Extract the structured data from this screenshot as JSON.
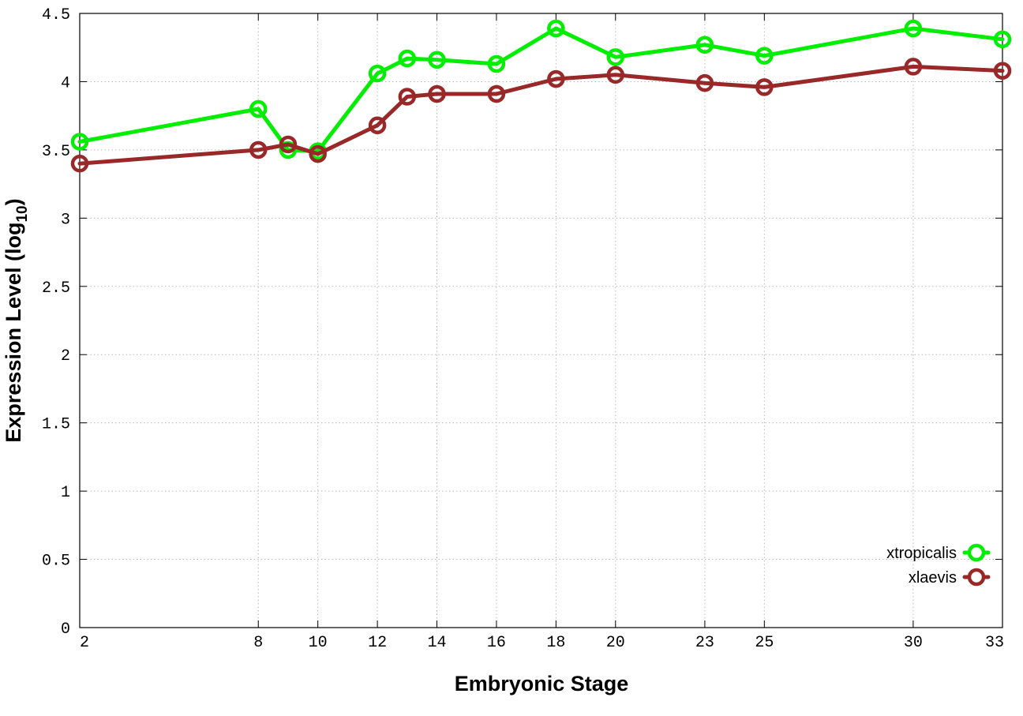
{
  "chart_data": {
    "type": "line",
    "title": "",
    "xlabel": "Embryonic Stage",
    "ylabel_main": "Expression Level (log",
    "ylabel_sub": "10",
    "ylabel_close": ")",
    "x": [
      2,
      8,
      9,
      10,
      12,
      13,
      14,
      16,
      18,
      20,
      23,
      25,
      30,
      33
    ],
    "x_ticks": [
      2,
      8,
      10,
      12,
      14,
      16,
      18,
      20,
      23,
      25,
      30,
      33
    ],
    "x_tick_labels": [
      "2",
      "8",
      "10",
      "12",
      "14",
      "16",
      "18",
      "20",
      "23",
      "25",
      "30",
      "33"
    ],
    "xlim": [
      2,
      33
    ],
    "y_ticks": [
      0,
      0.5,
      1,
      1.5,
      2,
      2.5,
      3,
      3.5,
      4,
      4.5
    ],
    "y_tick_labels": [
      "0",
      "0.5",
      "1",
      "1.5",
      "2",
      "2.5",
      "3",
      "3.5",
      "4",
      "4.5"
    ],
    "ylim": [
      0,
      4.5
    ],
    "grid": true,
    "legend_position": "bottom-right",
    "series": [
      {
        "name": "xtropicalis",
        "color": "#00ee00",
        "values": [
          3.56,
          3.8,
          3.5,
          3.49,
          4.06,
          4.17,
          4.16,
          4.13,
          4.39,
          4.18,
          4.27,
          4.19,
          4.39,
          4.31
        ]
      },
      {
        "name": "xlaevis",
        "color": "#992828",
        "values": [
          3.4,
          3.5,
          3.54,
          3.47,
          3.68,
          3.89,
          3.91,
          3.91,
          4.02,
          4.05,
          3.99,
          3.96,
          4.11,
          4.08
        ]
      }
    ]
  }
}
